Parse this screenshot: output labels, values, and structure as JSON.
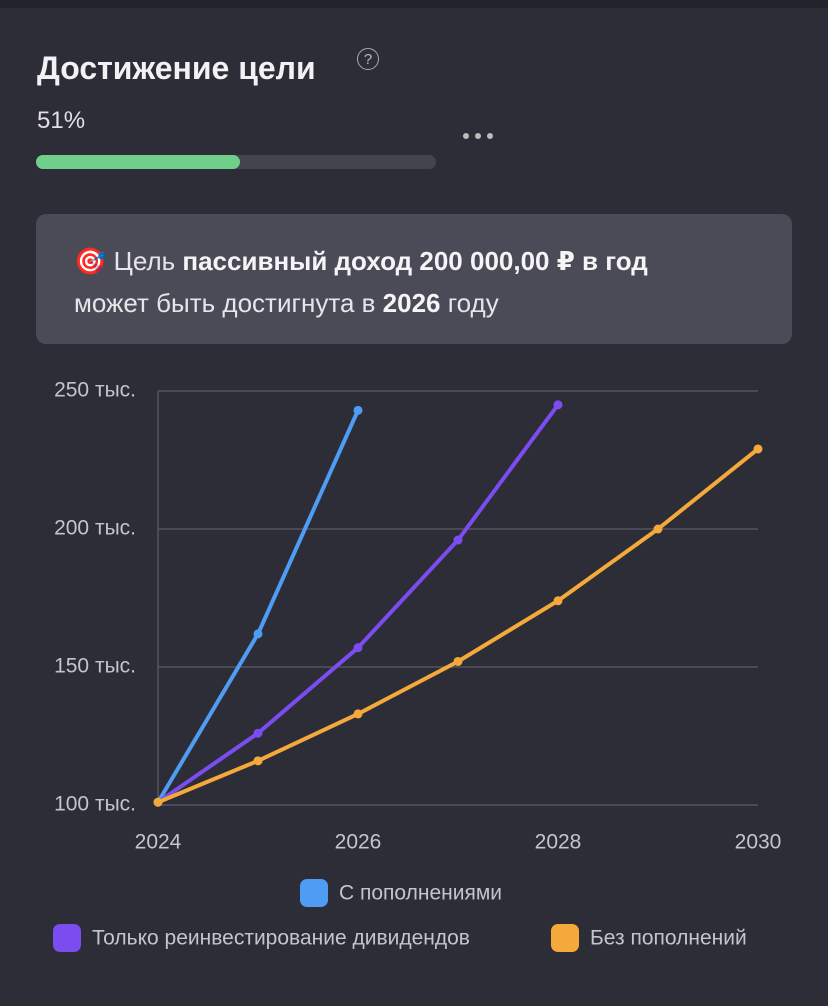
{
  "header": {
    "title": "Достижение цели",
    "help": "?",
    "progress": {
      "value": 51,
      "label": "51%"
    }
  },
  "banner": {
    "icon": "🎯",
    "line1_prefix": "Цель",
    "line1_bold": "пассивный доход 200 000,00 ₽ в год",
    "line2_prefix": "может быть достигнута в",
    "line2_bold": "2026",
    "line2_suffix": "году"
  },
  "chart_data": {
    "type": "line",
    "x": [
      2024,
      2025,
      2026,
      2027,
      2028,
      2029,
      2030
    ],
    "xlim": [
      2024,
      2030
    ],
    "xticks": [
      2024,
      2026,
      2028,
      2030
    ],
    "ylim": [
      100,
      250
    ],
    "yticks": [
      {
        "value": 100,
        "label": "100 тыс."
      },
      {
        "value": 150,
        "label": "150 тыс."
      },
      {
        "value": 200,
        "label": "200 тыс."
      },
      {
        "value": 250,
        "label": "250 тыс."
      }
    ],
    "grid": true,
    "series": [
      {
        "name": "С пополнениями",
        "color": "#4f9cf5",
        "values": [
          101,
          162,
          243,
          null,
          null,
          null,
          null
        ]
      },
      {
        "name": "Только реинвестирование дивидендов",
        "color": "#7b4cf0",
        "values": [
          101,
          126,
          157,
          196,
          245,
          null,
          null
        ]
      },
      {
        "name": "Без пополнений",
        "color": "#f4a93a",
        "values": [
          101,
          116,
          133,
          152,
          174,
          200,
          229
        ]
      }
    ]
  }
}
